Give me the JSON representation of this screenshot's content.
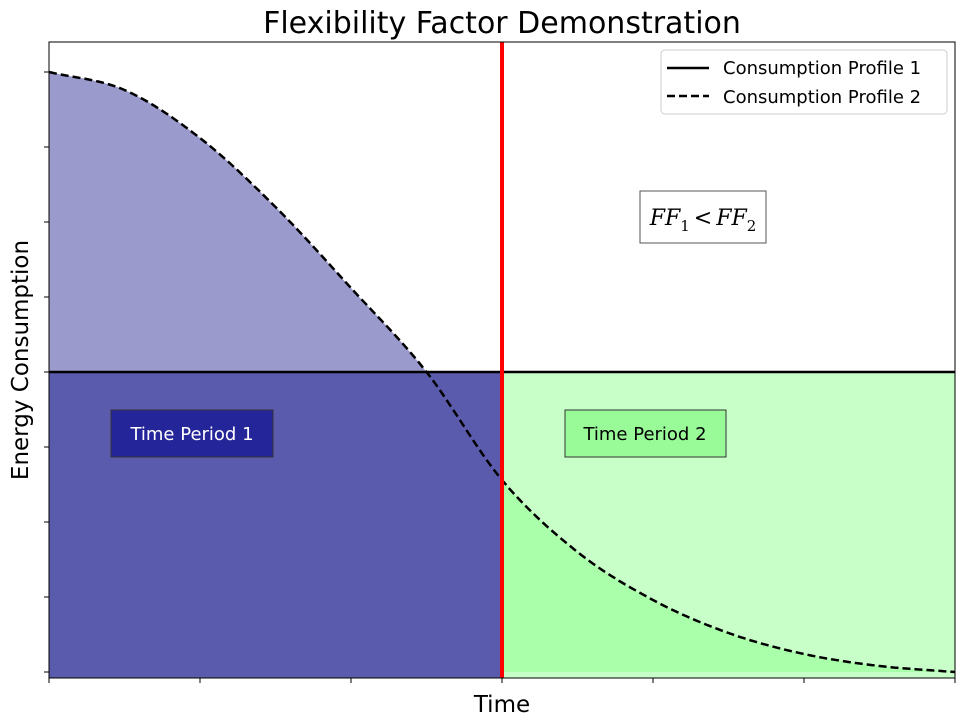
{
  "chart_data": {
    "type": "line",
    "title": "Flexibility Factor Demonstration",
    "xlabel": "Time",
    "ylabel": "Energy Consumption",
    "xlim": [
      0,
      6
    ],
    "ylim": [
      -0.02,
      2.1
    ],
    "grid": false,
    "legend_position": "top-right",
    "divider_x": 3,
    "series": [
      {
        "name": "Consumption Profile 1",
        "style": "solid",
        "color": "#000000",
        "x": [
          0,
          6
        ],
        "y": [
          1,
          1
        ]
      },
      {
        "name": "Consumption Profile 2",
        "style": "dashed",
        "color": "#000000",
        "x": [
          0,
          0.5,
          1,
          1.5,
          2,
          2.5,
          3,
          3.5,
          4,
          4.5,
          5,
          5.5,
          6
        ],
        "y": [
          2.0,
          1.94,
          1.78,
          1.55,
          1.28,
          1.0,
          0.64,
          0.4,
          0.24,
          0.13,
          0.06,
          0.02,
          0.0
        ]
      }
    ],
    "regions": [
      {
        "name": "period-1-upper",
        "x_range": [
          0,
          3
        ],
        "color": "#9a9acc"
      },
      {
        "name": "period-1-lower",
        "x_range": [
          0,
          3
        ],
        "color": "#5b5bad"
      },
      {
        "name": "period-2-upper",
        "x_range": [
          3,
          6
        ],
        "color": "#c8ffc8"
      },
      {
        "name": "period-2-lower",
        "x_range": [
          3,
          6
        ],
        "color": "#aaffaa"
      }
    ],
    "divider_color": "#ff0000",
    "annotations": [
      {
        "text": "Time Period 1",
        "background": "#25259a",
        "text_color": "#ffffff"
      },
      {
        "text": "Time Period 2",
        "background": "#98fb98",
        "text_color": "#000000"
      }
    ],
    "formula": {
      "base1": "FF",
      "sub1": "1",
      "operator": "<",
      "base2": "FF",
      "sub2": "2"
    },
    "xticks_count": 7,
    "yticks_count": 9
  }
}
